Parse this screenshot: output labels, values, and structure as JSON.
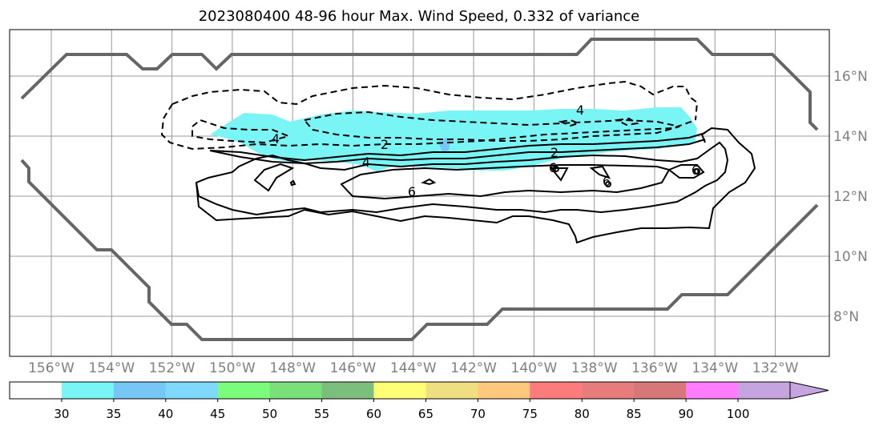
{
  "chart_data": {
    "type": "contour-map",
    "title": "2023080400 48-96 hour Max. Wind Speed, 0.332 of variance",
    "x_ticks": [
      "156°W",
      "154°W",
      "152°W",
      "150°W",
      "148°W",
      "146°W",
      "144°W",
      "142°W",
      "140°W",
      "138°W",
      "136°W",
      "134°W",
      "132°W"
    ],
    "y_ticks": [
      "16°N",
      "14°N",
      "12°N",
      "10°N",
      "8°N"
    ],
    "colorbar": {
      "ticks": [
        "30",
        "35",
        "40",
        "45",
        "50",
        "55",
        "60",
        "65",
        "70",
        "75",
        "80",
        "85",
        "90",
        "100"
      ],
      "colors": [
        "#ffffff",
        "#7af5f5",
        "#77c6f5",
        "#7fd9ff",
        "#7cfc7c",
        "#7ae07a",
        "#7cbf7c",
        "#ffff77",
        "#f0df80",
        "#ffc87c",
        "#fc7c7c",
        "#e67c7c",
        "#d77777",
        "#ff7cff",
        "#c6a4e0"
      ],
      "extend": "max"
    },
    "contour_labels": [
      "4",
      "2",
      "4",
      "2",
      "4",
      "6",
      "6",
      "6",
      "6"
    ],
    "grid": true
  }
}
